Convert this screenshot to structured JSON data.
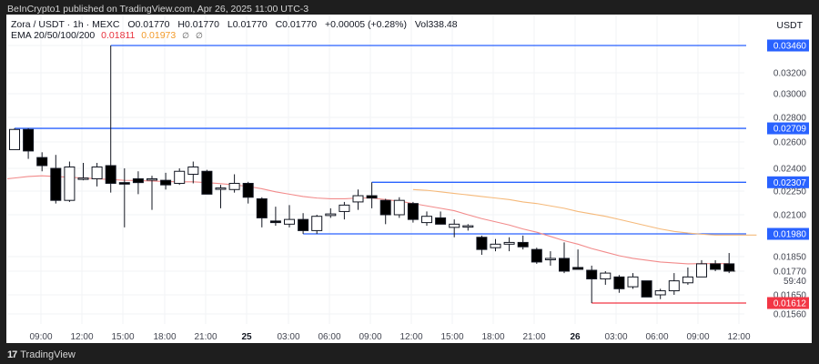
{
  "header": {
    "published": "BeInCrypto1 published on TradingView.com, Apr 26, 2025 11:00 UTC-3"
  },
  "legend": {
    "symbol": "Zora / USDT · 1h · MEXC",
    "open": "O0.01770",
    "high": "H0.01770",
    "low": "L0.01770",
    "close": "C0.01770",
    "change": "+0.00005 (+0.28%)",
    "volume": "Vol338.48",
    "ema_label": "EMA 20/50/100/200",
    "ema20": "0.01811",
    "ema50": "0.01973",
    "ema100": "∅",
    "ema200": "∅"
  },
  "axis": {
    "currency": "USDT",
    "countdown": "59:40"
  },
  "footer": {
    "brand": "TradingView",
    "logo_mark": "17"
  },
  "colors": {
    "level_blue": "#2962ff",
    "level_red": "#f23645",
    "ema20": "#f28b8b",
    "ema50": "#f5b97a",
    "bear": "#000000",
    "bull_fill": "#ffffff"
  },
  "chart_data": {
    "type": "candlestick",
    "title": "Zora / USDT · 1h · MEXC",
    "ylabel": "USDT",
    "yscale": "log",
    "ylim": [
      0.0152,
      0.0352
    ],
    "y_ticks": [
      0.0346,
      0.032,
      0.03,
      0.028,
      0.026,
      0.024,
      0.0225,
      0.021,
      0.0185,
      0.0177,
      0.0165,
      0.0156
    ],
    "x_ticks": [
      "09:00",
      "12:00",
      "15:00",
      "18:00",
      "21:00",
      "25",
      "03:00",
      "06:00",
      "09:00",
      "12:00",
      "15:00",
      "18:00",
      "21:00",
      "26",
      "03:00",
      "06:00",
      "09:00",
      "12:00"
    ],
    "levels": [
      {
        "price": 0.0346,
        "color": "blue",
        "label": "0.03460"
      },
      {
        "price": 0.02709,
        "color": "blue",
        "label": "0.02709"
      },
      {
        "price": 0.02307,
        "color": "blue",
        "label": "0.02307"
      },
      {
        "price": 0.0198,
        "color": "blue",
        "label": "0.01980"
      },
      {
        "price": 0.01612,
        "color": "red",
        "label": "0.01612"
      }
    ],
    "last_price": 0.0177,
    "candles": [
      {
        "o": 0.0254,
        "h": 0.02709,
        "l": 0.0254,
        "c": 0.027
      },
      {
        "o": 0.027,
        "h": 0.0271,
        "l": 0.0247,
        "c": 0.0253
      },
      {
        "o": 0.0248,
        "h": 0.0252,
        "l": 0.0238,
        "c": 0.0242
      },
      {
        "o": 0.024,
        "h": 0.025,
        "l": 0.0217,
        "c": 0.0219
      },
      {
        "o": 0.0219,
        "h": 0.0245,
        "l": 0.0218,
        "c": 0.0241
      },
      {
        "o": 0.0233,
        "h": 0.0244,
        "l": 0.0232,
        "c": 0.02335
      },
      {
        "o": 0.0233,
        "h": 0.0244,
        "l": 0.0228,
        "c": 0.0241
      },
      {
        "o": 0.0242,
        "h": 0.0346,
        "l": 0.0224,
        "c": 0.023
      },
      {
        "o": 0.02305,
        "h": 0.024,
        "l": 0.0202,
        "c": 0.02295
      },
      {
        "o": 0.0233,
        "h": 0.0238,
        "l": 0.0223,
        "c": 0.02305
      },
      {
        "o": 0.0233,
        "h": 0.0235,
        "l": 0.0213,
        "c": 0.0233
      },
      {
        "o": 0.0232,
        "h": 0.0237,
        "l": 0.0226,
        "c": 0.0229
      },
      {
        "o": 0.023,
        "h": 0.024,
        "l": 0.0229,
        "c": 0.0238
      },
      {
        "o": 0.0236,
        "h": 0.0245,
        "l": 0.023,
        "c": 0.0241
      },
      {
        "o": 0.0238,
        "h": 0.0239,
        "l": 0.0223,
        "c": 0.0223
      },
      {
        "o": 0.0227,
        "h": 0.0229,
        "l": 0.0214,
        "c": 0.0227
      },
      {
        "o": 0.0226,
        "h": 0.0236,
        "l": 0.0224,
        "c": 0.023
      },
      {
        "o": 0.023,
        "h": 0.0231,
        "l": 0.0217,
        "c": 0.0221
      },
      {
        "o": 0.022,
        "h": 0.0221,
        "l": 0.0202,
        "c": 0.0208
      },
      {
        "o": 0.0206,
        "h": 0.0215,
        "l": 0.0203,
        "c": 0.0205
      },
      {
        "o": 0.0204,
        "h": 0.0216,
        "l": 0.0202,
        "c": 0.0207
      },
      {
        "o": 0.0207,
        "h": 0.0211,
        "l": 0.0198,
        "c": 0.02
      },
      {
        "o": 0.02,
        "h": 0.021,
        "l": 0.0198,
        "c": 0.0209
      },
      {
        "o": 0.02095,
        "h": 0.0214,
        "l": 0.0208,
        "c": 0.02105
      },
      {
        "o": 0.0212,
        "h": 0.0218,
        "l": 0.0207,
        "c": 0.0216
      },
      {
        "o": 0.0218,
        "h": 0.0226,
        "l": 0.0213,
        "c": 0.0222
      },
      {
        "o": 0.0222,
        "h": 0.02307,
        "l": 0.0214,
        "c": 0.02205
      },
      {
        "o": 0.0219,
        "h": 0.022,
        "l": 0.0204,
        "c": 0.021
      },
      {
        "o": 0.021,
        "h": 0.0221,
        "l": 0.0208,
        "c": 0.0219
      },
      {
        "o": 0.0217,
        "h": 0.0218,
        "l": 0.0205,
        "c": 0.0207
      },
      {
        "o": 0.0205,
        "h": 0.0212,
        "l": 0.0203,
        "c": 0.0209
      },
      {
        "o": 0.0208,
        "h": 0.0212,
        "l": 0.0204,
        "c": 0.0204
      },
      {
        "o": 0.0202,
        "h": 0.0207,
        "l": 0.0196,
        "c": 0.0204
      },
      {
        "o": 0.0203,
        "h": 0.0204,
        "l": 0.02,
        "c": 0.0203
      },
      {
        "o": 0.0196,
        "h": 0.0197,
        "l": 0.0186,
        "c": 0.0189
      },
      {
        "o": 0.019,
        "h": 0.0195,
        "l": 0.0188,
        "c": 0.0192
      },
      {
        "o": 0.0192,
        "h": 0.0196,
        "l": 0.0188,
        "c": 0.0193
      },
      {
        "o": 0.0193,
        "h": 0.0197,
        "l": 0.0189,
        "c": 0.01905
      },
      {
        "o": 0.0189,
        "h": 0.019,
        "l": 0.0181,
        "c": 0.0182
      },
      {
        "o": 0.0184,
        "h": 0.0188,
        "l": 0.018,
        "c": 0.0184
      },
      {
        "o": 0.0184,
        "h": 0.0193,
        "l": 0.0176,
        "c": 0.0177
      },
      {
        "o": 0.0179,
        "h": 0.0189,
        "l": 0.0178,
        "c": 0.0178
      },
      {
        "o": 0.01775,
        "h": 0.018,
        "l": 0.01612,
        "c": 0.0173
      },
      {
        "o": 0.0173,
        "h": 0.0177,
        "l": 0.017,
        "c": 0.0176
      },
      {
        "o": 0.0174,
        "h": 0.0175,
        "l": 0.0166,
        "c": 0.0168
      },
      {
        "o": 0.0169,
        "h": 0.0176,
        "l": 0.0168,
        "c": 0.0174
      },
      {
        "o": 0.0172,
        "h": 0.0172,
        "l": 0.0164,
        "c": 0.0164
      },
      {
        "o": 0.0165,
        "h": 0.0168,
        "l": 0.0163,
        "c": 0.0167
      },
      {
        "o": 0.0167,
        "h": 0.0176,
        "l": 0.0165,
        "c": 0.0172
      },
      {
        "o": 0.0171,
        "h": 0.0179,
        "l": 0.017,
        "c": 0.0174
      },
      {
        "o": 0.0174,
        "h": 0.0183,
        "l": 0.0174,
        "c": 0.0181
      },
      {
        "o": 0.0181,
        "h": 0.0183,
        "l": 0.0177,
        "c": 0.0178
      },
      {
        "o": 0.0181,
        "h": 0.0187,
        "l": 0.0176,
        "c": 0.0177
      }
    ],
    "ema20": [
      0.02335,
      0.02345,
      0.0235,
      0.02345,
      0.0234,
      0.02335,
      0.0233,
      0.02325,
      0.0232,
      0.02318,
      0.02315,
      0.02312,
      0.0231,
      0.0231,
      0.02305,
      0.02298,
      0.0229,
      0.0228,
      0.02265,
      0.02245,
      0.0223,
      0.02215,
      0.02205,
      0.022,
      0.022,
      0.02205,
      0.02205,
      0.02195,
      0.02185,
      0.0217,
      0.02155,
      0.0214,
      0.02125,
      0.021,
      0.02075,
      0.02055,
      0.02035,
      0.0201,
      0.0199,
      0.01965,
      0.0194,
      0.0192,
      0.01895,
      0.01875,
      0.01855,
      0.0184,
      0.0183,
      0.0182,
      0.01815,
      0.0181,
      0.01811,
      0.01811,
      0.01811
    ],
    "ema50_start_index": 27,
    "ema50": [
      0.0226,
      0.02255,
      0.02245,
      0.02235,
      0.02225,
      0.02215,
      0.02205,
      0.02195,
      0.0218,
      0.0217,
      0.02155,
      0.0214,
      0.0212,
      0.02105,
      0.0209,
      0.0207,
      0.0205,
      0.0203,
      0.0201,
      0.01995,
      0.01985,
      0.01978,
      0.01973,
      0.01973,
      0.01973,
      0.01973
    ],
    "legend": [
      "EMA 20",
      "EMA 50"
    ]
  }
}
